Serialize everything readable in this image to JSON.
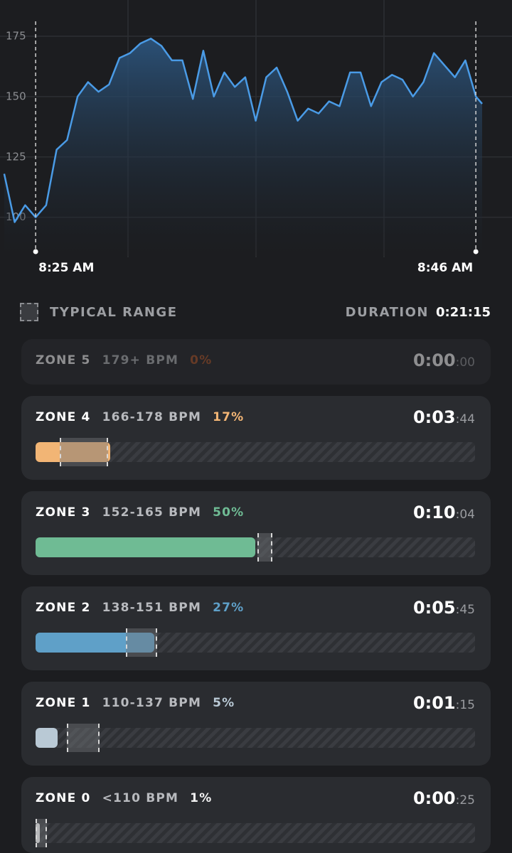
{
  "chart_data": {
    "type": "line",
    "x": [
      -1.5,
      -1,
      -0.5,
      0,
      0.5,
      1,
      1.5,
      2,
      2.5,
      3,
      3.5,
      4,
      4.5,
      5,
      5.5,
      6,
      6.5,
      7,
      7.5,
      8,
      8.5,
      9,
      9.5,
      10,
      10.5,
      11,
      11.5,
      12,
      12.5,
      13,
      13.5,
      14,
      14.5,
      15,
      15.5,
      16,
      16.5,
      17,
      17.5,
      18,
      18.5,
      19,
      19.5,
      20,
      20.5,
      21,
      21.3
    ],
    "series": [
      {
        "color": "#4a9be6",
        "values": [
          118,
          98,
          105,
          100,
          105,
          128,
          132,
          150,
          156,
          152,
          155,
          166,
          168,
          172,
          174,
          171,
          165,
          165,
          149,
          169,
          150,
          160,
          154,
          158,
          140,
          158,
          162,
          152,
          140,
          145,
          143,
          148,
          146,
          160,
          160,
          146,
          156,
          159,
          157,
          150,
          156,
          168,
          163,
          158,
          165,
          150,
          147
        ]
      }
    ],
    "xlim": [
      -1.7,
      21.3
    ],
    "ylim": [
      84,
      190
    ],
    "xticks": [
      {
        "value": 0,
        "label": "8:25 AM"
      },
      {
        "value": 21,
        "label": "8:46 AM"
      }
    ],
    "yticks": [
      100,
      125,
      150,
      175
    ],
    "grid": true
  },
  "legend": {
    "label": "TYPICAL RANGE"
  },
  "duration": {
    "label": "DURATION",
    "value": "0:21:15"
  },
  "zones": [
    {
      "name": "ZONE 5",
      "range": "179+ BPM",
      "percent": 0,
      "percent_label": "0%",
      "time": "0:00",
      "seconds": ":00",
      "color": "#b0582c",
      "dimmed": true
    },
    {
      "name": "ZONE 4",
      "range": "166-178 BPM",
      "percent": 17,
      "percent_label": "17%",
      "time": "0:03",
      "seconds": ":44",
      "color": "#f2b575",
      "typical_range": [
        5.5,
        16.5
      ]
    },
    {
      "name": "ZONE 3",
      "range": "152-165 BPM",
      "percent": 50,
      "percent_label": "50%",
      "time": "0:10",
      "seconds": ":04",
      "color": "#6fbb94",
      "typical_range": [
        50.5,
        53.9
      ]
    },
    {
      "name": "ZONE 2",
      "range": "138-151 BPM",
      "percent": 27,
      "percent_label": "27%",
      "time": "0:05",
      "seconds": ":45",
      "color": "#5fa0c8",
      "typical_range": [
        20.5,
        27.7
      ]
    },
    {
      "name": "ZONE 1",
      "range": "110-137 BPM",
      "percent": 5,
      "percent_label": "5%",
      "time": "0:01",
      "seconds": ":15",
      "color": "#b9c9d5",
      "typical_range": [
        7.1,
        14.6
      ]
    },
    {
      "name": "ZONE 0",
      "range": "<110 BPM",
      "percent": 1,
      "percent_label": "1%",
      "time": "0:00",
      "seconds": ":25",
      "color": "#f2f2f2",
      "typical_range": [
        0,
        2.6
      ]
    }
  ]
}
